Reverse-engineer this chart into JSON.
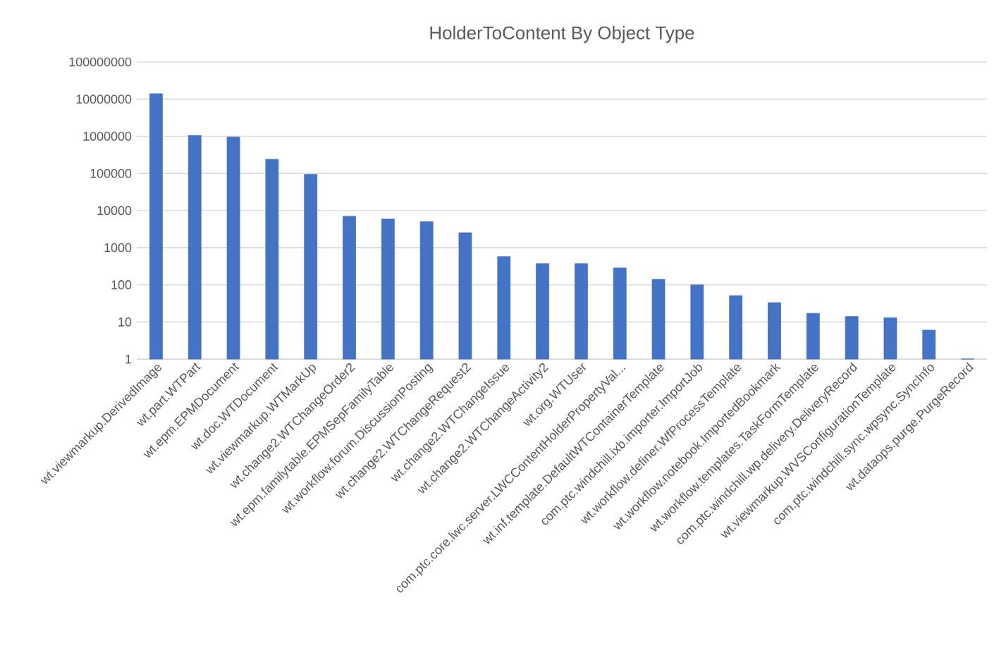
{
  "chart_data": {
    "type": "bar",
    "title": "HolderToContent By Object Type",
    "categories": [
      "wt.viewmarkup.DerivedImage",
      "wt.part.WTPart",
      "wt.epm.EPMDocument",
      "wt.doc.WTDocument",
      "wt.viewmarkup.WTMarkUp",
      "wt.change2.WTChangeOrder2",
      "wt.epm.familytable.EPMSepFamilyTable",
      "wt.workflow.forum.DiscussionPosting",
      "wt.change2.WTChangeRequest2",
      "wt.change2.WTChangeIssue",
      "wt.change2.WTChangeActivity2",
      "wt.org.WTUser",
      "com.ptc.core.lwc.server.LWCContentHolderPropertyVal...",
      "wt.inf.template.DefaultWTContainerTemplate",
      "com.ptc.windchill.ixb.importer.ImportJob",
      "wt.workflow.definer.WfProcessTemplate",
      "wt.workflow.notebook.ImportedBookmark",
      "wt.workflow.templates.TaskFormTemplate",
      "com.ptc.windchill.wp.delivery.DeliveryRecord",
      "wt.viewmarkup.WVSConfigurationTemplate",
      "com.ptc.windchill.sync.wpsync.SyncInfo",
      "wt.dataops.purge.PurgeRecord"
    ],
    "values": [
      14000000,
      1050000,
      950000,
      240000,
      94000,
      7000,
      5900,
      5000,
      2500,
      570,
      370,
      370,
      285,
      140,
      100,
      51,
      33,
      17,
      14,
      13,
      6,
      1
    ],
    "color": "#4472c4",
    "log": "y",
    "ylim": [
      1,
      100000000
    ],
    "yticks": [
      1,
      10,
      100,
      1000,
      10000,
      100000,
      1000000,
      10000000,
      100000000
    ],
    "grid": "y"
  }
}
